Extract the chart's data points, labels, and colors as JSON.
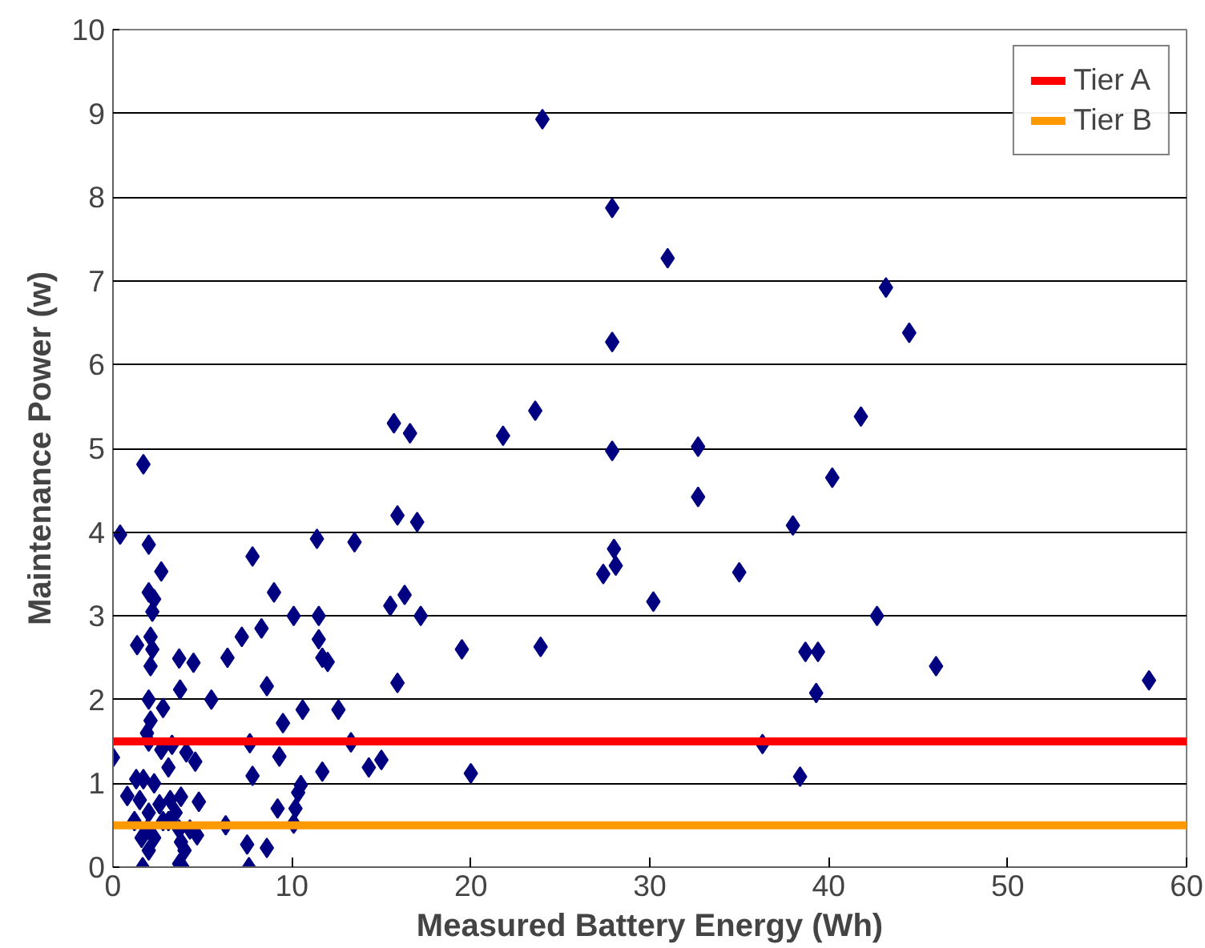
{
  "chart_data": {
    "type": "scatter",
    "xlabel": "Measured Battery Energy (Wh)",
    "ylabel": "Maintenance Power (w)",
    "xlim": [
      0,
      60
    ],
    "ylim": [
      0,
      10
    ],
    "xticks": [
      0,
      10,
      20,
      30,
      40,
      50,
      60
    ],
    "yticks": [
      0,
      1,
      2,
      3,
      4,
      5,
      6,
      7,
      8,
      9,
      10
    ],
    "grid": "y",
    "legend": "top right",
    "marker": "diamond",
    "ref_lines": [
      {
        "axis": "y",
        "value": 1.5,
        "label": "Tier A",
        "color": "#ff0000"
      },
      {
        "axis": "y",
        "value": 0.5,
        "label": "Tier B",
        "color": "#ff9900"
      }
    ],
    "series": [
      {
        "color": "#000080",
        "x": [
          24,
          27.9,
          31,
          43.2,
          44.5,
          27.9,
          41.8,
          15.7,
          23.6,
          16.6,
          21.8,
          27.9,
          32.7,
          40.2,
          32.7,
          15.9,
          17,
          38,
          28,
          28.1,
          27.4,
          35,
          16.3,
          15.5,
          30.2,
          17.2,
          42.7,
          19.5,
          23.9,
          38.7,
          39.4,
          15.9,
          46,
          39.3,
          57.9,
          36.3,
          38.4,
          20,
          15,
          1.7,
          0.4,
          2.0,
          2.7,
          7.8,
          11.4,
          13.5,
          2.0,
          2.3,
          2.2,
          9.0,
          10.1,
          11.5,
          1.35,
          2.1,
          2.2,
          2.1,
          7.2,
          8.3,
          11.5,
          11.7,
          12.0,
          3.7,
          4.5,
          6.4,
          3.75,
          5.5,
          8.6,
          2.0,
          2.8,
          2.1,
          1.9,
          10.6,
          12.6,
          9.5,
          2.0,
          2.7,
          3.3,
          4.1,
          4.6,
          7.65,
          9.3,
          13.3,
          14.3,
          0,
          3.1,
          7.8,
          11.7,
          10.5,
          10.35,
          9.2,
          10.2,
          10.1,
          4.8,
          3.8,
          6.3,
          4.7,
          7.5,
          8.6,
          1.66,
          3.7,
          3.9,
          7.6,
          0.8,
          1.3,
          1.7,
          2.3,
          1.5,
          2.0,
          2.6,
          1.2,
          1.9,
          2.3,
          3.1,
          3.5,
          3.8,
          4.0,
          4.3,
          3.7,
          1.6,
          2.8,
          3.2,
          2.0
        ],
        "values": [
          8.93,
          7.87,
          7.27,
          6.92,
          6.38,
          6.27,
          5.38,
          5.3,
          5.45,
          5.18,
          5.15,
          4.97,
          5.02,
          4.65,
          4.42,
          4.2,
          4.12,
          4.08,
          3.8,
          3.6,
          3.5,
          3.52,
          3.25,
          3.12,
          3.17,
          3.0,
          3.0,
          2.6,
          2.63,
          2.57,
          2.57,
          2.2,
          2.4,
          2.08,
          2.23,
          1.47,
          1.08,
          1.12,
          1.28,
          4.81,
          3.97,
          3.85,
          3.53,
          3.71,
          3.92,
          3.88,
          3.28,
          3.2,
          3.05,
          3.28,
          3.0,
          3.0,
          2.65,
          2.75,
          2.6,
          2.4,
          2.75,
          2.85,
          2.72,
          2.5,
          2.45,
          2.49,
          2.44,
          2.5,
          2.12,
          2.0,
          2.16,
          2.0,
          1.9,
          1.75,
          1.6,
          1.88,
          1.88,
          1.72,
          1.5,
          1.4,
          1.46,
          1.37,
          1.26,
          1.48,
          1.32,
          1.49,
          1.19,
          1.31,
          1.19,
          1.09,
          1.14,
          0.98,
          0.89,
          0.7,
          0.7,
          0.52,
          0.78,
          0.84,
          0.5,
          0.38,
          0.27,
          0.23,
          0,
          0.04,
          0,
          0,
          0.85,
          1.05,
          1.05,
          1.0,
          0.8,
          0.65,
          0.75,
          0.55,
          0.45,
          0.35,
          0.55,
          0.65,
          0.3,
          0.2,
          0.45,
          0.45,
          0.35,
          0.55,
          0.8,
          0.2
        ]
      }
    ]
  }
}
